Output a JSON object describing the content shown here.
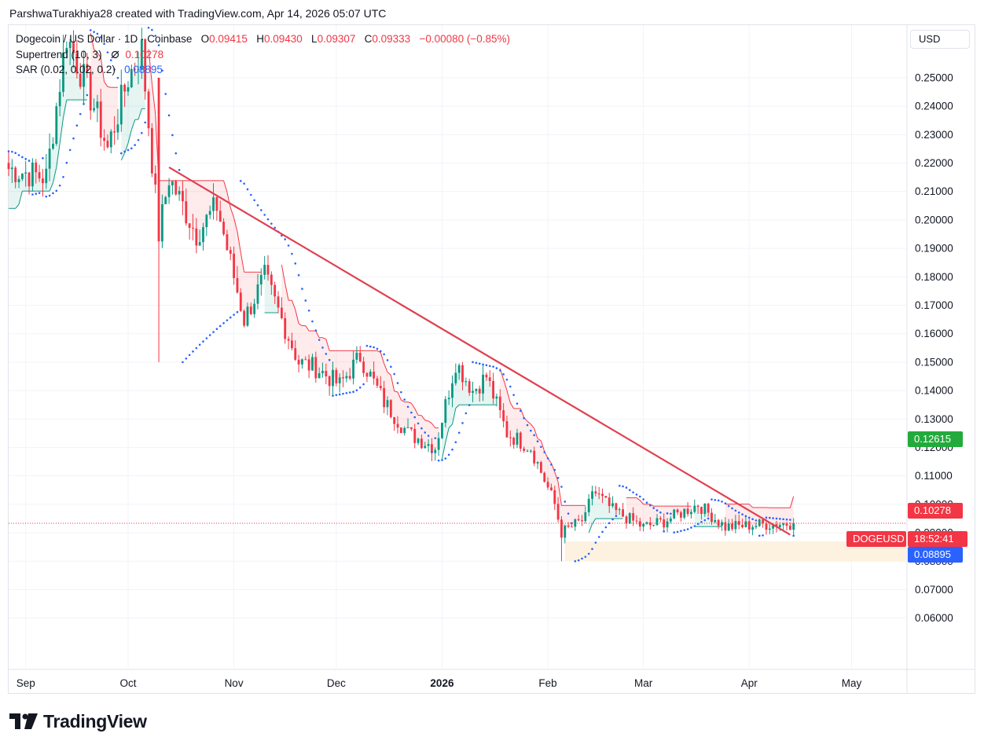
{
  "attribution": "ParshwaTurakhiya28 created with TradingView.com, Apr 14, 2026 05:07 UTC",
  "legend": {
    "symbol": "Dogecoin / US Dollar · 1D · Coinbase",
    "ohlc": {
      "o_label": "O",
      "o": "0.09415",
      "h_label": "H",
      "h": "0.09430",
      "l_label": "L",
      "l": "0.09307",
      "c_label": "C",
      "c": "0.09333",
      "change": "−0.00080 (−0.85%)"
    },
    "supertrend": {
      "name": "Supertrend (10, 3)",
      "icon": "eye-off-icon",
      "value": "0.10278"
    },
    "sar": {
      "name": "SAR (0.02, 0.02, 0.2)",
      "value": "0.08895"
    }
  },
  "currency": "USD",
  "labels": {
    "supertrend_up": "0.12615",
    "supertrend_down": "0.10278",
    "symbol_tag": "DOGEUSD",
    "countdown": "18:52:41",
    "sar": "0.08895"
  },
  "brand": "TradingView",
  "colors": {
    "up": "#089981",
    "down": "#f23645",
    "sar": "#2962ff",
    "trendline": "#e0404f",
    "zone": "#fdf2e0"
  },
  "chart_data": {
    "type": "candlestick",
    "title": "Dogecoin / US Dollar · 1D · Coinbase",
    "x_ticks": [
      "Sep",
      "Oct",
      "Nov",
      "Dec",
      "2026",
      "Feb",
      "Mar",
      "Apr",
      "May"
    ],
    "y_ticks": [
      "0.06000",
      "0.07000",
      "0.08000",
      "0.09000",
      "0.10000",
      "0.11000",
      "0.12000",
      "0.13000",
      "0.14000",
      "0.15000",
      "0.16000",
      "0.17000",
      "0.18000",
      "0.19000",
      "0.20000",
      "0.21000",
      "0.22000",
      "0.23000",
      "0.24000",
      "0.25000"
    ],
    "ylim": [
      0.0425,
      0.2685
    ],
    "x_range": [
      "2025-08-27",
      "2026-05-17"
    ],
    "last_price": 0.09333,
    "key_points": [
      {
        "date": "2025-08-27",
        "close": 0.218
      },
      {
        "date": "2025-09-07",
        "close": 0.215
      },
      {
        "date": "2025-09-13",
        "close": 0.265
      },
      {
        "date": "2025-09-21",
        "close": 0.24
      },
      {
        "date": "2025-09-25",
        "close": 0.225
      },
      {
        "date": "2025-10-01",
        "close": 0.25
      },
      {
        "date": "2025-10-05",
        "close": 0.26
      },
      {
        "date": "2025-10-10",
        "close": 0.195
      },
      {
        "date": "2025-10-13",
        "close": 0.215
      },
      {
        "date": "2025-10-21",
        "close": 0.195
      },
      {
        "date": "2025-10-27",
        "close": 0.205
      },
      {
        "date": "2025-11-04",
        "close": 0.165
      },
      {
        "date": "2025-11-10",
        "close": 0.18
      },
      {
        "date": "2025-11-20",
        "close": 0.15
      },
      {
        "date": "2025-11-25",
        "close": 0.148
      },
      {
        "date": "2025-12-02",
        "close": 0.142
      },
      {
        "date": "2025-12-08",
        "close": 0.152
      },
      {
        "date": "2025-12-15",
        "close": 0.136
      },
      {
        "date": "2025-12-22",
        "close": 0.125
      },
      {
        "date": "2025-12-30",
        "close": 0.12
      },
      {
        "date": "2026-01-05",
        "close": 0.15
      },
      {
        "date": "2026-01-10",
        "close": 0.14
      },
      {
        "date": "2026-01-14",
        "close": 0.145
      },
      {
        "date": "2026-01-20",
        "close": 0.125
      },
      {
        "date": "2026-01-27",
        "close": 0.12
      },
      {
        "date": "2026-02-03",
        "close": 0.1
      },
      {
        "date": "2026-02-05",
        "close": 0.09
      },
      {
        "date": "2026-02-12",
        "close": 0.095
      },
      {
        "date": "2026-02-14",
        "close": 0.105
      },
      {
        "date": "2026-02-20",
        "close": 0.098
      },
      {
        "date": "2026-03-01",
        "close": 0.092
      },
      {
        "date": "2026-03-07",
        "close": 0.094
      },
      {
        "date": "2026-03-17",
        "close": 0.1
      },
      {
        "date": "2026-03-25",
        "close": 0.092
      },
      {
        "date": "2026-04-06",
        "close": 0.093
      },
      {
        "date": "2026-04-14",
        "close": 0.09333
      }
    ],
    "trendline": {
      "start": {
        "date": "2025-10-13",
        "price": 0.2185
      },
      "end": {
        "date": "2026-04-13",
        "price": 0.0893
      }
    },
    "support_zone": {
      "start": "2026-02-06",
      "end": "2026-05-17",
      "low": 0.08,
      "high": 0.087
    },
    "supertrend_value": 0.10278,
    "supertrend_up_value": 0.12615,
    "sar_value": 0.08895
  }
}
